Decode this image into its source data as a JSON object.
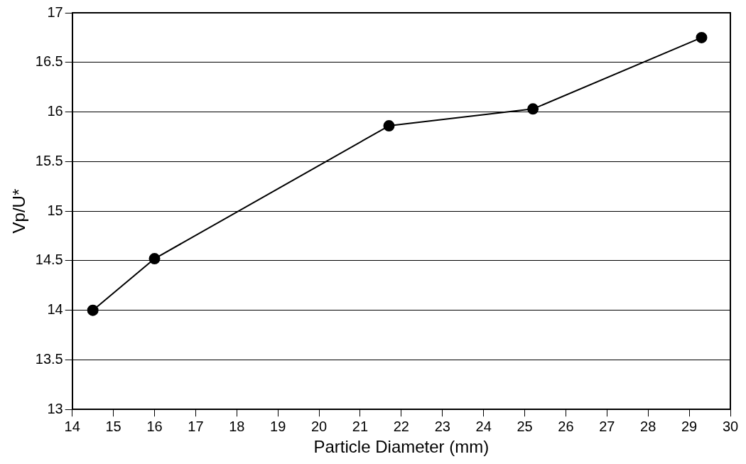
{
  "chart_data": {
    "type": "line",
    "xlabel": "Particle Diameter (mm)",
    "ylabel": "Vp/U*",
    "x": [
      14.5,
      16.0,
      21.7,
      25.2,
      29.3
    ],
    "series": [
      {
        "color": "#000000",
        "values": [
          14.0,
          14.52,
          15.86,
          16.03,
          16.75
        ]
      }
    ],
    "xlim": [
      14,
      30
    ],
    "xticks": [
      14,
      15,
      16,
      17,
      18,
      19,
      20,
      21,
      22,
      23,
      24,
      25,
      26,
      27,
      28,
      29,
      30
    ],
    "ylim": [
      13,
      17
    ],
    "yticks": [
      13,
      13.5,
      14,
      14.5,
      15,
      15.5,
      16,
      16.5,
      17
    ],
    "grid": "y",
    "legend": false,
    "marker": "circle",
    "line_style": "solid"
  }
}
